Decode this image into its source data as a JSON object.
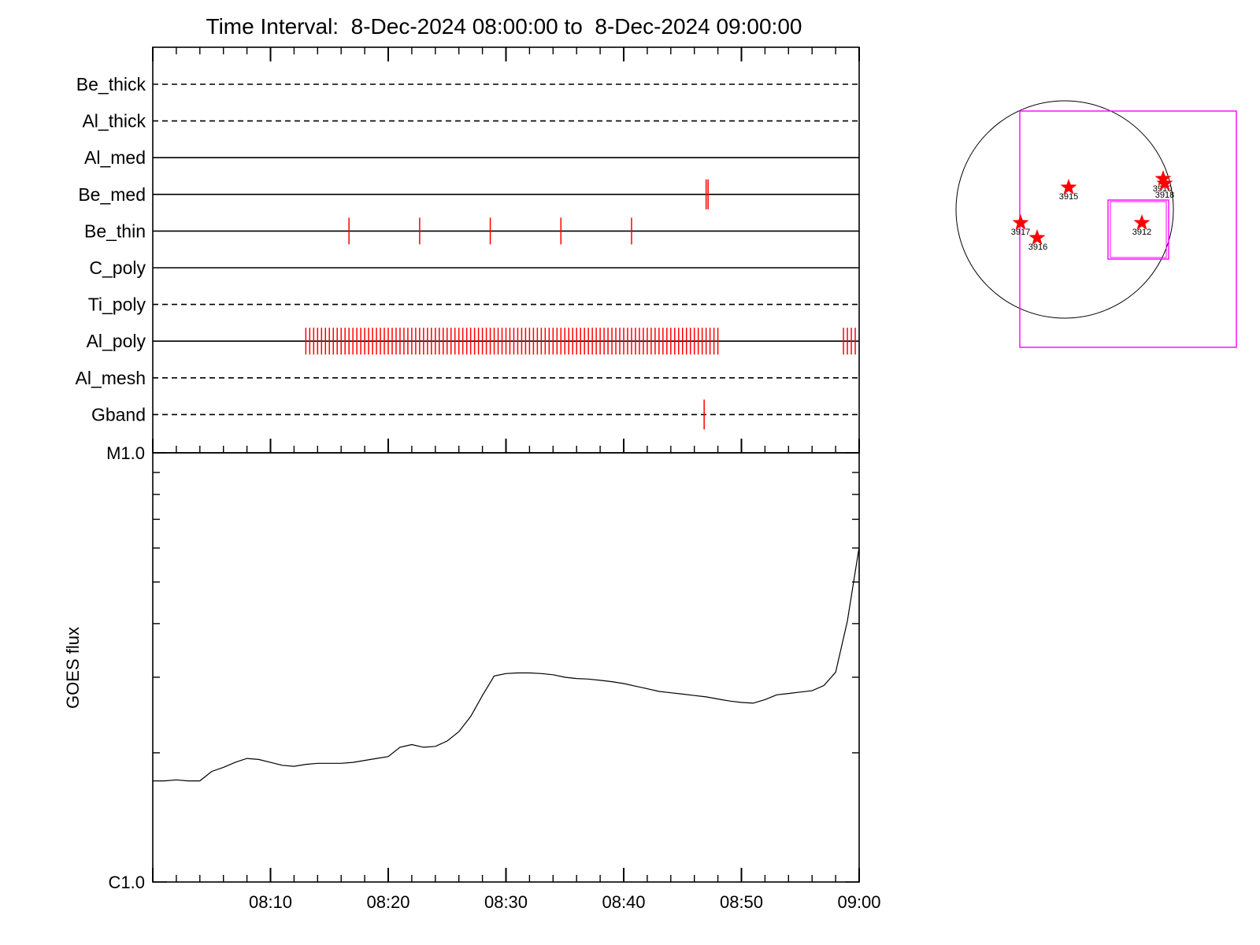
{
  "chart_data": [
    {
      "type": "event-timeline",
      "title": "Time Interval:  8-Dec-2024 08:00:00 to  8-Dec-2024 09:00:00",
      "x_range": [
        "08:00",
        "09:00"
      ],
      "channels": [
        {
          "name": "Be_thick",
          "style": "dashed",
          "events": []
        },
        {
          "name": "Al_thick",
          "style": "dashed",
          "events": []
        },
        {
          "name": "Al_med",
          "style": "solid",
          "events": []
        },
        {
          "name": "Be_med",
          "style": "solid",
          "events": [
            "08:47:00",
            "08:47:10"
          ]
        },
        {
          "name": "Be_thin",
          "style": "solid",
          "events": [
            "08:16:40",
            "08:22:40",
            "08:28:40",
            "08:34:40",
            "08:40:40"
          ]
        },
        {
          "name": "C_poly",
          "style": "solid",
          "events": []
        },
        {
          "name": "Ti_poly",
          "style": "dashed",
          "events": []
        },
        {
          "name": "Al_poly",
          "style": "solid",
          "events": [
            "08:13:00",
            "08:13:20",
            "08:13:40",
            "08:14:00",
            "08:14:20",
            "08:14:40",
            "08:15:00",
            "08:15:20",
            "08:15:40",
            "08:16:00",
            "08:16:20",
            "08:16:40",
            "08:17:00",
            "08:17:20",
            "08:17:40",
            "08:18:00",
            "08:18:20",
            "08:18:40",
            "08:19:00",
            "08:19:20",
            "08:19:40",
            "08:20:00",
            "08:20:20",
            "08:20:40",
            "08:21:00",
            "08:21:20",
            "08:21:40",
            "08:22:00",
            "08:22:20",
            "08:22:40",
            "08:23:00",
            "08:23:20",
            "08:23:40",
            "08:24:00",
            "08:24:20",
            "08:24:40",
            "08:25:00",
            "08:25:20",
            "08:25:40",
            "08:26:00",
            "08:26:20",
            "08:26:40",
            "08:27:00",
            "08:27:20",
            "08:27:40",
            "08:28:00",
            "08:28:20",
            "08:28:40",
            "08:29:00",
            "08:29:20",
            "08:29:40",
            "08:30:00",
            "08:30:20",
            "08:30:40",
            "08:31:00",
            "08:31:20",
            "08:31:40",
            "08:32:00",
            "08:32:20",
            "08:32:40",
            "08:33:00",
            "08:33:20",
            "08:33:40",
            "08:34:00",
            "08:34:20",
            "08:34:40",
            "08:35:00",
            "08:35:20",
            "08:35:40",
            "08:36:00",
            "08:36:20",
            "08:36:40",
            "08:37:00",
            "08:37:20",
            "08:37:40",
            "08:38:00",
            "08:38:20",
            "08:38:40",
            "08:39:00",
            "08:39:20",
            "08:39:40",
            "08:40:00",
            "08:40:20",
            "08:40:40",
            "08:41:00",
            "08:41:20",
            "08:41:40",
            "08:42:00",
            "08:42:20",
            "08:42:40",
            "08:43:00",
            "08:43:20",
            "08:43:40",
            "08:44:00",
            "08:44:20",
            "08:44:40",
            "08:45:00",
            "08:45:20",
            "08:45:40",
            "08:46:00",
            "08:46:20",
            "08:46:40",
            "08:47:00",
            "08:47:20",
            "08:47:40",
            "08:48:00",
            "08:58:40",
            "08:59:00",
            "08:59:20",
            "08:59:40"
          ]
        },
        {
          "name": "Al_mesh",
          "style": "dashed",
          "events": []
        },
        {
          "name": "Gband",
          "style": "dashed",
          "events": [
            "08:46:50"
          ]
        }
      ],
      "event_color": "#ff0000"
    },
    {
      "type": "line",
      "ylabel": "GOES flux",
      "yscale": "log",
      "y_tick_labels": [
        "M1.0",
        "C1.0"
      ],
      "ylim": [
        1e-06,
        1e-05
      ],
      "x_tick_labels": [
        "08:10",
        "08:20",
        "08:30",
        "08:40",
        "08:50",
        "09:00"
      ],
      "xlim": [
        "08:00",
        "09:00"
      ],
      "series": [
        {
          "x": [
            "08:00",
            "08:01",
            "08:02",
            "08:03",
            "08:04",
            "08:05",
            "08:06",
            "08:07",
            "08:08",
            "08:09",
            "08:10",
            "08:11",
            "08:12",
            "08:13",
            "08:14",
            "08:15",
            "08:16",
            "08:17",
            "08:18",
            "08:19",
            "08:20",
            "08:21",
            "08:22",
            "08:23",
            "08:24",
            "08:25",
            "08:26",
            "08:27",
            "08:28",
            "08:29",
            "08:30",
            "08:31",
            "08:32",
            "08:33",
            "08:34",
            "08:35",
            "08:36",
            "08:37",
            "08:38",
            "08:39",
            "08:40",
            "08:41",
            "08:42",
            "08:43",
            "08:44",
            "08:45",
            "08:46",
            "08:47",
            "08:48",
            "08:49",
            "08:50",
            "08:51",
            "08:52",
            "08:53",
            "08:54",
            "08:55",
            "08:56",
            "08:57",
            "08:58",
            "08:59",
            "09:00"
          ],
          "y": [
            1.72e-06,
            1.72e-06,
            1.73e-06,
            1.72e-06,
            1.72e-06,
            1.81e-06,
            1.85e-06,
            1.9e-06,
            1.94e-06,
            1.93e-06,
            1.9e-06,
            1.87e-06,
            1.86e-06,
            1.88e-06,
            1.89e-06,
            1.89e-06,
            1.89e-06,
            1.9e-06,
            1.92e-06,
            1.94e-06,
            1.96e-06,
            2.06e-06,
            2.09e-06,
            2.06e-06,
            2.07e-06,
            2.13e-06,
            2.24e-06,
            2.43e-06,
            2.72e-06,
            3.02e-06,
            3.06e-06,
            3.07e-06,
            3.07e-06,
            3.06e-06,
            3.04e-06,
            3e-06,
            2.98e-06,
            2.97e-06,
            2.95e-06,
            2.93e-06,
            2.9e-06,
            2.86e-06,
            2.82e-06,
            2.78e-06,
            2.76e-06,
            2.74e-06,
            2.72e-06,
            2.7e-06,
            2.67e-06,
            2.64e-06,
            2.62e-06,
            2.61e-06,
            2.66e-06,
            2.73e-06,
            2.75e-06,
            2.77e-06,
            2.79e-06,
            2.87e-06,
            3.08e-06,
            4.05e-06,
            6.03e-06
          ]
        }
      ]
    },
    {
      "type": "solar-disk-map",
      "regions": [
        {
          "label": "3915"
        },
        {
          "label": "3917"
        },
        {
          "label": "3916"
        },
        {
          "label": "3910"
        },
        {
          "label": "3918"
        },
        {
          "label": "3912"
        }
      ],
      "marker_color": "#ff0000",
      "fov_color": "#ff00ff"
    }
  ]
}
